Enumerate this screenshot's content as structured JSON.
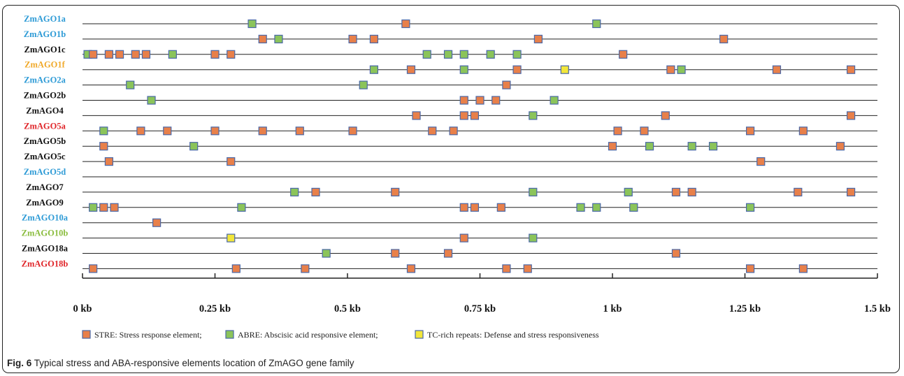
{
  "colors": {
    "STRE": "#E8804A",
    "ABRE": "#8BC45A",
    "TC": "#F2E63A",
    "box_border": "#4A68A8",
    "line": "#222222"
  },
  "axis": {
    "min": 0,
    "max": 1.5,
    "ticks": [
      {
        "value": 0,
        "label": "0 kb"
      },
      {
        "value": 0.25,
        "label": "0.25 kb"
      },
      {
        "value": 0.5,
        "label": "0.5 kb"
      },
      {
        "value": 0.75,
        "label": "0.75 kb"
      },
      {
        "value": 1.0,
        "label": "1 kb"
      },
      {
        "value": 1.25,
        "label": "1.25 kb"
      },
      {
        "value": 1.5,
        "label": "1.5 kb"
      }
    ]
  },
  "legend": [
    {
      "type": "STRE",
      "label": "STRE: Stress response element;"
    },
    {
      "type": "ABRE",
      "label": "ABRE: Abscisic acid responsive element;"
    },
    {
      "type": "TC",
      "label": "TC-rich repeats: Defense and stress responsiveness"
    }
  ],
  "genes": [
    {
      "name": "ZmAGO1a",
      "color": "#2E9BD6",
      "elements": [
        {
          "t": "ABRE",
          "p": 0.32
        },
        {
          "t": "STRE",
          "p": 0.61
        },
        {
          "t": "ABRE",
          "p": 0.97
        }
      ]
    },
    {
      "name": "ZmAGO1b",
      "color": "#2E9BD6",
      "elements": [
        {
          "t": "STRE",
          "p": 0.34
        },
        {
          "t": "ABRE",
          "p": 0.37
        },
        {
          "t": "STRE",
          "p": 0.51
        },
        {
          "t": "STRE",
          "p": 0.55
        },
        {
          "t": "STRE",
          "p": 0.86
        },
        {
          "t": "STRE",
          "p": 1.21
        }
      ]
    },
    {
      "name": "ZmAGO1c",
      "color": "#111111",
      "elements": [
        {
          "t": "ABRE",
          "p": 0.01
        },
        {
          "t": "STRE",
          "p": 0.02
        },
        {
          "t": "STRE",
          "p": 0.05
        },
        {
          "t": "STRE",
          "p": 0.07
        },
        {
          "t": "STRE",
          "p": 0.1
        },
        {
          "t": "STRE",
          "p": 0.12
        },
        {
          "t": "ABRE",
          "p": 0.17
        },
        {
          "t": "STRE",
          "p": 0.25
        },
        {
          "t": "STRE",
          "p": 0.28
        },
        {
          "t": "ABRE",
          "p": 0.65
        },
        {
          "t": "ABRE",
          "p": 0.69
        },
        {
          "t": "ABRE",
          "p": 0.72
        },
        {
          "t": "ABRE",
          "p": 0.77
        },
        {
          "t": "ABRE",
          "p": 0.82
        },
        {
          "t": "STRE",
          "p": 1.02
        }
      ]
    },
    {
      "name": "ZmAGO1f",
      "color": "#F0A92A",
      "elements": [
        {
          "t": "ABRE",
          "p": 0.55
        },
        {
          "t": "STRE",
          "p": 0.62
        },
        {
          "t": "ABRE",
          "p": 0.72
        },
        {
          "t": "STRE",
          "p": 0.82
        },
        {
          "t": "TC",
          "p": 0.91
        },
        {
          "t": "STRE",
          "p": 1.11
        },
        {
          "t": "ABRE",
          "p": 1.13
        },
        {
          "t": "STRE",
          "p": 1.31
        },
        {
          "t": "STRE",
          "p": 1.45
        }
      ]
    },
    {
      "name": "ZmAGO2a",
      "color": "#2E9BD6",
      "elements": [
        {
          "t": "ABRE",
          "p": 0.09
        },
        {
          "t": "ABRE",
          "p": 0.53
        },
        {
          "t": "STRE",
          "p": 0.8
        }
      ]
    },
    {
      "name": "ZmAGO2b",
      "color": "#111111",
      "elements": [
        {
          "t": "ABRE",
          "p": 0.13
        },
        {
          "t": "STRE",
          "p": 0.72
        },
        {
          "t": "STRE",
          "p": 0.75
        },
        {
          "t": "STRE",
          "p": 0.78
        },
        {
          "t": "ABRE",
          "p": 0.89
        }
      ]
    },
    {
      "name": "ZmAGO4",
      "color": "#111111",
      "elements": [
        {
          "t": "STRE",
          "p": 0.63
        },
        {
          "t": "STRE",
          "p": 0.72
        },
        {
          "t": "STRE",
          "p": 0.74
        },
        {
          "t": "ABRE",
          "p": 0.85
        },
        {
          "t": "STRE",
          "p": 1.1
        },
        {
          "t": "STRE",
          "p": 1.45
        }
      ]
    },
    {
      "name": "ZmAGO5a",
      "color": "#E0262A",
      "elements": [
        {
          "t": "ABRE",
          "p": 0.04
        },
        {
          "t": "STRE",
          "p": 0.11
        },
        {
          "t": "STRE",
          "p": 0.16
        },
        {
          "t": "STRE",
          "p": 0.25
        },
        {
          "t": "STRE",
          "p": 0.34
        },
        {
          "t": "STRE",
          "p": 0.41
        },
        {
          "t": "STRE",
          "p": 0.51
        },
        {
          "t": "STRE",
          "p": 0.66
        },
        {
          "t": "STRE",
          "p": 0.7
        },
        {
          "t": "STRE",
          "p": 1.01
        },
        {
          "t": "STRE",
          "p": 1.06
        },
        {
          "t": "STRE",
          "p": 1.26
        },
        {
          "t": "STRE",
          "p": 1.36
        }
      ]
    },
    {
      "name": "ZmAGO5b",
      "color": "#111111",
      "elements": [
        {
          "t": "STRE",
          "p": 0.04
        },
        {
          "t": "ABRE",
          "p": 0.21
        },
        {
          "t": "STRE",
          "p": 1.0
        },
        {
          "t": "ABRE",
          "p": 1.07
        },
        {
          "t": "ABRE",
          "p": 1.15
        },
        {
          "t": "ABRE",
          "p": 1.19
        },
        {
          "t": "STRE",
          "p": 1.43
        }
      ]
    },
    {
      "name": "ZmAGO5c",
      "color": "#111111",
      "elements": [
        {
          "t": "STRE",
          "p": 0.05
        },
        {
          "t": "STRE",
          "p": 0.28
        },
        {
          "t": "STRE",
          "p": 1.28
        }
      ]
    },
    {
      "name": "ZmAGO5d",
      "color": "#2E9BD6",
      "elements": []
    },
    {
      "name": "ZmAGO7",
      "color": "#111111",
      "elements": [
        {
          "t": "ABRE",
          "p": 0.4
        },
        {
          "t": "STRE",
          "p": 0.44
        },
        {
          "t": "STRE",
          "p": 0.59
        },
        {
          "t": "ABRE",
          "p": 0.85
        },
        {
          "t": "ABRE",
          "p": 1.03
        },
        {
          "t": "STRE",
          "p": 1.12
        },
        {
          "t": "STRE",
          "p": 1.15
        },
        {
          "t": "STRE",
          "p": 1.35
        },
        {
          "t": "STRE",
          "p": 1.45
        }
      ]
    },
    {
      "name": "ZmAGO9",
      "color": "#111111",
      "elements": [
        {
          "t": "ABRE",
          "p": 0.02
        },
        {
          "t": "STRE",
          "p": 0.04
        },
        {
          "t": "STRE",
          "p": 0.06
        },
        {
          "t": "ABRE",
          "p": 0.3
        },
        {
          "t": "STRE",
          "p": 0.72
        },
        {
          "t": "STRE",
          "p": 0.74
        },
        {
          "t": "STRE",
          "p": 0.79
        },
        {
          "t": "ABRE",
          "p": 0.94
        },
        {
          "t": "ABRE",
          "p": 0.97
        },
        {
          "t": "ABRE",
          "p": 1.04
        },
        {
          "t": "ABRE",
          "p": 1.26
        }
      ]
    },
    {
      "name": "ZmAGO10a",
      "color": "#2E9BD6",
      "elements": [
        {
          "t": "STRE",
          "p": 0.14
        }
      ]
    },
    {
      "name": "ZmAGO10b",
      "color": "#8BBD3F",
      "elements": [
        {
          "t": "TC",
          "p": 0.28
        },
        {
          "t": "STRE",
          "p": 0.72
        },
        {
          "t": "ABRE",
          "p": 0.85
        }
      ]
    },
    {
      "name": "ZmAGO18a",
      "color": "#111111",
      "elements": [
        {
          "t": "ABRE",
          "p": 0.46
        },
        {
          "t": "STRE",
          "p": 0.59
        },
        {
          "t": "STRE",
          "p": 0.69
        },
        {
          "t": "STRE",
          "p": 1.12
        }
      ]
    },
    {
      "name": "ZmAGO18b",
      "color": "#E0262A",
      "elements": [
        {
          "t": "STRE",
          "p": 0.02
        },
        {
          "t": "STRE",
          "p": 0.29
        },
        {
          "t": "STRE",
          "p": 0.42
        },
        {
          "t": "STRE",
          "p": 0.62
        },
        {
          "t": "STRE",
          "p": 0.8
        },
        {
          "t": "STRE",
          "p": 0.84
        },
        {
          "t": "STRE",
          "p": 1.26
        },
        {
          "t": "STRE",
          "p": 1.36
        }
      ]
    }
  ],
  "caption": {
    "prefix": "Fig. 6",
    "text": "Typical stress and ABA-responsive elements location of ZmAGO gene family"
  }
}
